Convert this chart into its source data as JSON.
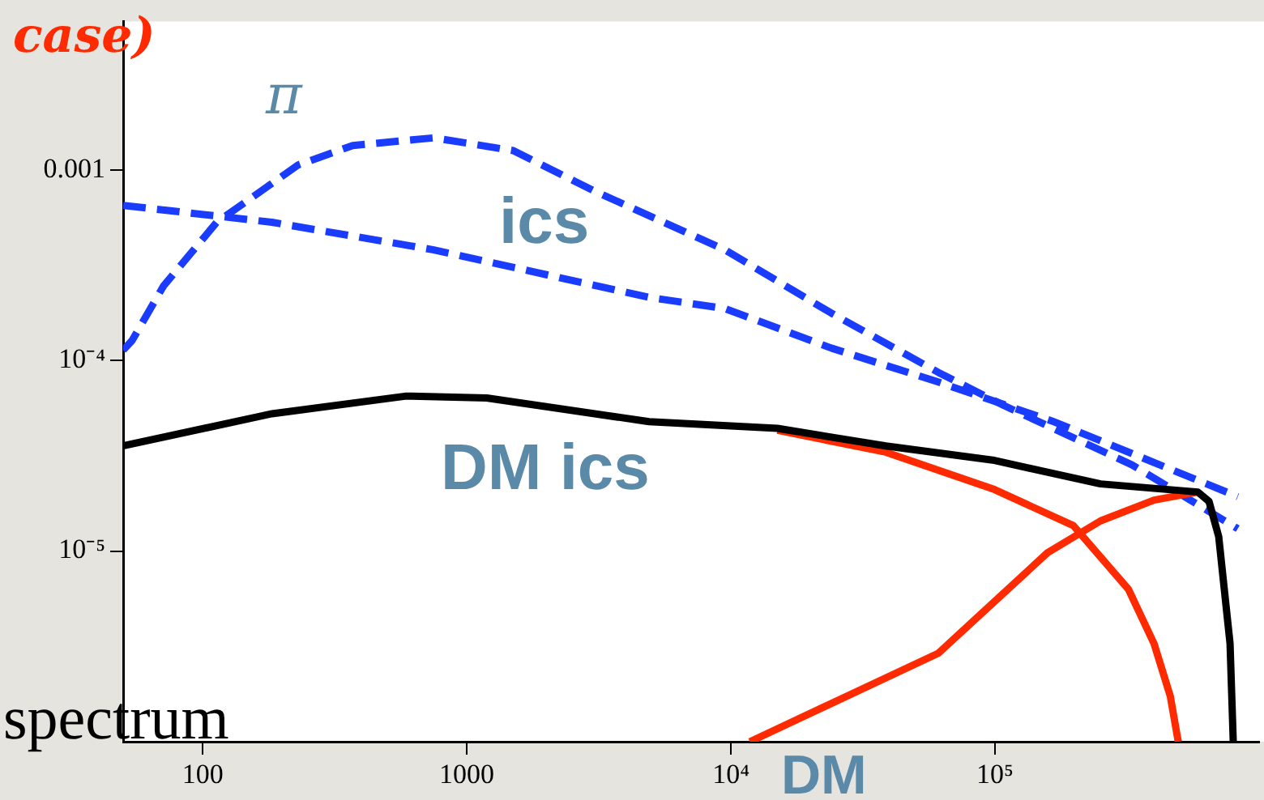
{
  "chart_data": {
    "type": "line",
    "log": "xy",
    "xlim": [
      50,
      1000000
    ],
    "ylim": [
      1e-06,
      0.006
    ],
    "xticks": [
      100,
      1000,
      {
        "value": 10000,
        "label": "10⁴"
      },
      {
        "value": 100000,
        "label": "10⁵"
      }
    ],
    "yticks": [
      {
        "value": 1e-05,
        "label": "10⁻⁵"
      },
      {
        "value": 0.0001,
        "label": "10⁻⁴"
      },
      0.001
    ],
    "grid": false,
    "legend": false,
    "marker": "none",
    "annotations": [
      "case)",
      "spectrum"
    ],
    "series": [
      {
        "name": "π",
        "color": "#1a3cff",
        "line_style": "dashed",
        "x": [
          50,
          54,
          71,
          113,
          230,
          370,
          750,
          1500,
          3000,
          9500,
          24000,
          61000,
          108000,
          330000,
          830000
        ],
        "values": [
          0.000113,
          0.000127,
          0.000245,
          0.00053,
          0.00106,
          0.00134,
          0.00147,
          0.00126,
          0.00078,
          0.00038,
          0.000177,
          8.65e-05,
          5.8e-05,
          2.83e-05,
          1.31e-05
        ]
      },
      {
        "name": "ics",
        "color": "#1a3cff",
        "line_style": "dashed",
        "x": [
          50,
          183,
          750,
          4900,
          9500,
          24000,
          61000,
          165000,
          830000
        ],
        "values": [
          0.00065,
          0.00053,
          0.00038,
          0.000214,
          0.000187,
          0.000116,
          7.7e-05,
          4.8e-05,
          1.93e-05
        ]
      },
      {
        "name": "DM ics",
        "color": "#ff2a00",
        "line_style": "solid",
        "x": [
          15000,
          38600,
          98000,
          198000,
          320000,
          400000,
          461000,
          494000
        ],
        "values": [
          4.3e-05,
          3.3e-05,
          2.12e-05,
          1.36e-05,
          6.3e-06,
          3.27e-06,
          1.73e-06,
          1e-06
        ]
      },
      {
        "name": "DM",
        "color": "#ff2a00",
        "line_style": "solid",
        "x": [
          11800,
          61000,
          158000,
          251000,
          400000,
          586000
        ],
        "values": [
          1e-06,
          2.91e-06,
          9.8e-06,
          1.44e-05,
          1.85e-05,
          2.04e-05
        ]
      },
      {
        "color": "#000000",
        "line_style": "solid",
        "x": [
          50,
          183,
          590,
          1190,
          4900,
          15000,
          38600,
          98000,
          251000,
          586000,
          646000,
          703000,
          776000,
          798000
        ],
        "values": [
          3.56e-05,
          5.25e-05,
          6.5e-05,
          6.35e-05,
          4.77e-05,
          4.4e-05,
          3.56e-05,
          3e-05,
          2.25e-05,
          2.04e-05,
          1.82e-05,
          1.19e-05,
          3.27e-06,
          1e-06
        ]
      }
    ]
  }
}
